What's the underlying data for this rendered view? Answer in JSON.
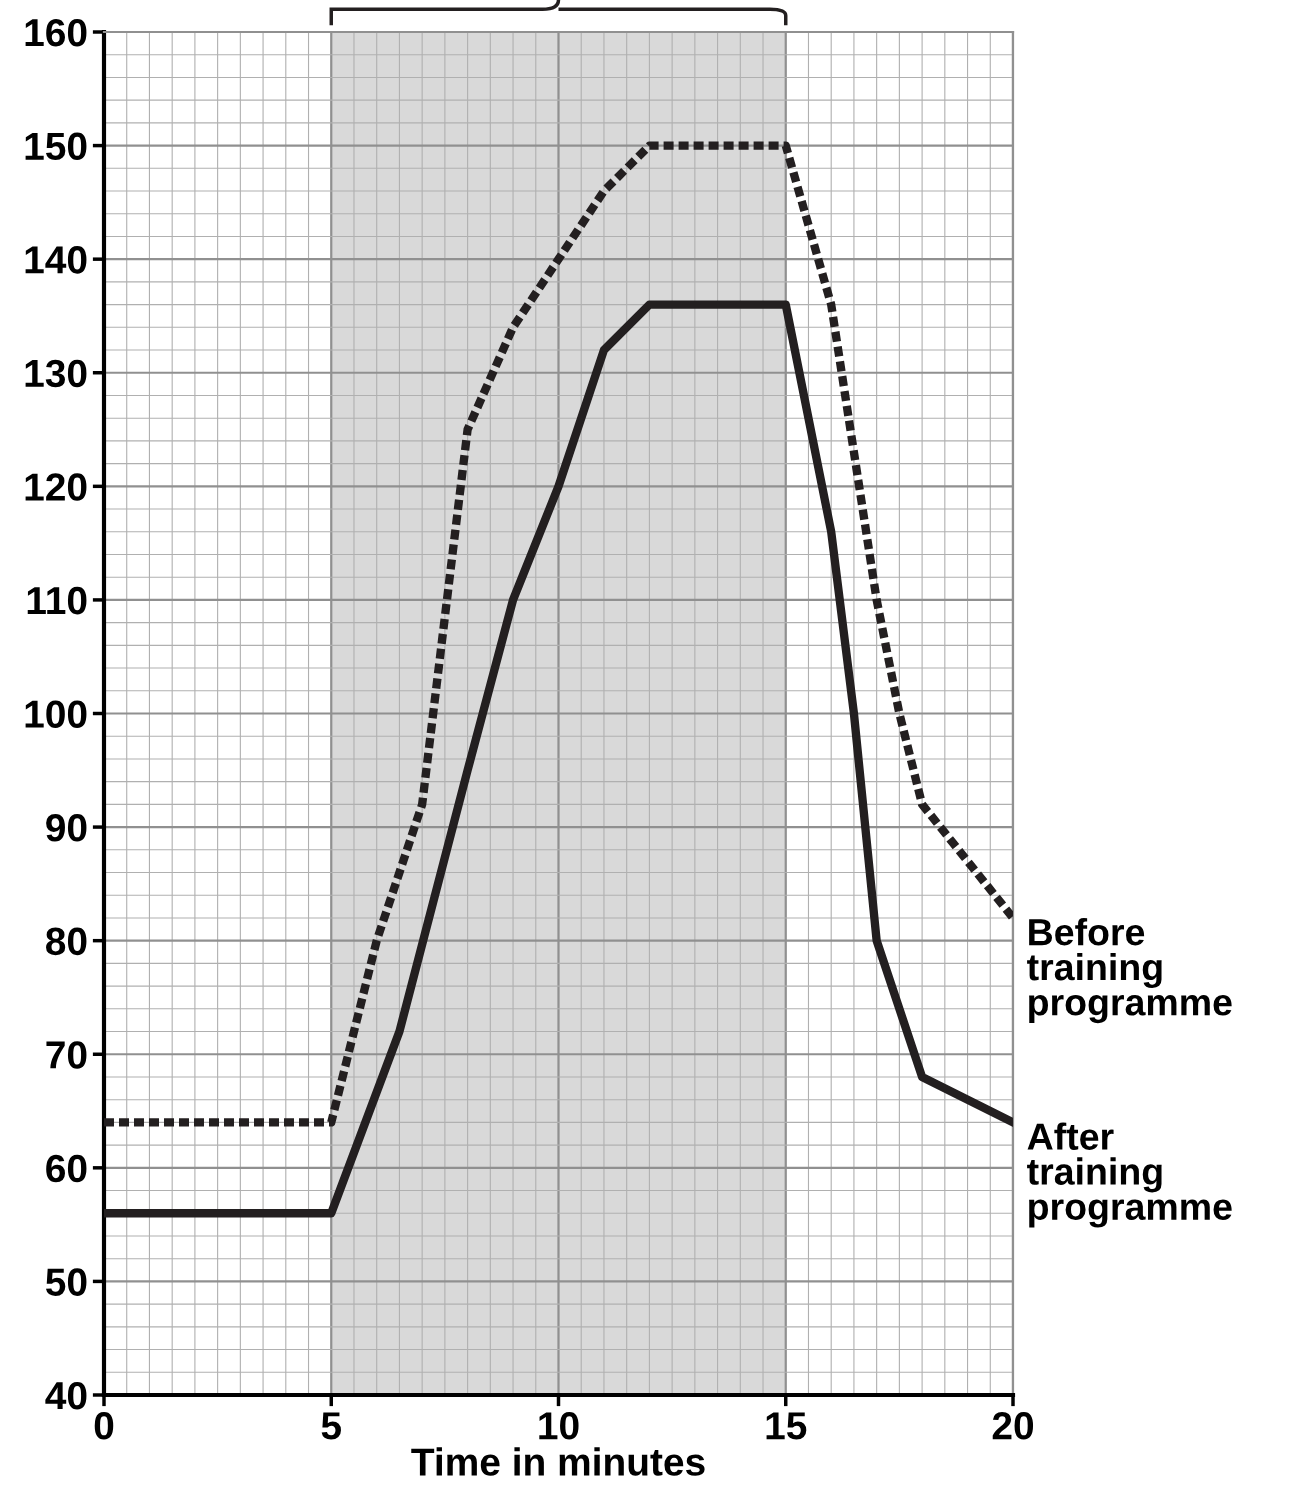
{
  "chart_data": {
    "type": "line",
    "xlabel": "Time in minutes",
    "xlim": [
      0,
      20
    ],
    "ylim": [
      40,
      160
    ],
    "xticks": [
      0,
      5,
      10,
      15,
      20
    ],
    "yticks": [
      40,
      50,
      60,
      70,
      80,
      90,
      100,
      110,
      120,
      130,
      140,
      150,
      160
    ],
    "grid": true,
    "legend": false,
    "marker": "none",
    "bands": [
      {
        "axis": "x",
        "from": 5,
        "to": 15,
        "color": "#d9d9d9"
      }
    ],
    "series": [
      {
        "name": "Before training programme",
        "color": "#231f20",
        "line_style": "dotted",
        "x": [
          0,
          5,
          6,
          7,
          8,
          9,
          10,
          11,
          12,
          15,
          16,
          17,
          17.5,
          18,
          20
        ],
        "values": [
          64,
          64,
          80,
          92,
          125,
          134,
          140,
          146,
          150,
          150,
          136,
          110,
          100,
          92,
          82
        ]
      },
      {
        "name": "After training programme",
        "color": "#231f20",
        "line_style": "solid",
        "x": [
          0,
          5,
          6.5,
          8,
          9,
          10,
          11,
          12,
          15,
          16,
          16.5,
          17,
          18,
          20
        ],
        "values": [
          56,
          56,
          72,
          95,
          110,
          120,
          132,
          136,
          136,
          116,
          100,
          80,
          68,
          64
        ]
      }
    ]
  }
}
